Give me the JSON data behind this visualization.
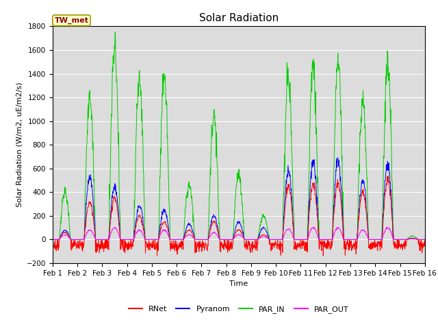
{
  "title": "Solar Radiation",
  "ylabel": "Solar Radiation (W/m2, uE/m2/s)",
  "xlabel": "Time",
  "ylim": [
    -200,
    1800
  ],
  "annotation": "TW_met",
  "xtick_labels": [
    "Feb 1",
    "Feb 2",
    "Feb 3",
    "Feb 4",
    "Feb 5",
    "Feb 6",
    "Feb 7",
    "Feb 8",
    "Feb 9",
    "Feb 10",
    "Feb 11",
    "Feb 12",
    "Feb 13",
    "Feb 14",
    "Feb 15",
    "Feb 16"
  ],
  "legend_labels": [
    "RNet",
    "Pyranom",
    "PAR_IN",
    "PAR_OUT"
  ],
  "colors": {
    "RNet": "#ff0000",
    "Pyranom": "#0000ff",
    "PAR_IN": "#00cc00",
    "PAR_OUT": "#ff00ff"
  },
  "bg_color": "#dcdcdc",
  "n_days": 15,
  "pts_per_day": 96,
  "par_in_peaks": [
    400,
    1200,
    1620,
    1360,
    1380,
    450,
    1050,
    550,
    200,
    1350,
    1460,
    1500,
    1170,
    1480,
    30
  ],
  "pyranom_peaks": [
    80,
    520,
    450,
    280,
    250,
    130,
    200,
    150,
    100,
    590,
    650,
    670,
    490,
    640,
    10
  ],
  "rnet_peaks": [
    60,
    320,
    350,
    200,
    150,
    80,
    150,
    80,
    40,
    450,
    470,
    480,
    400,
    500,
    10
  ],
  "par_out_peaks": [
    40,
    80,
    100,
    80,
    80,
    40,
    60,
    40,
    25,
    90,
    100,
    100,
    80,
    100,
    5
  ],
  "title_fontsize": 11,
  "label_fontsize": 8,
  "tick_fontsize": 7.5,
  "legend_fontsize": 8
}
